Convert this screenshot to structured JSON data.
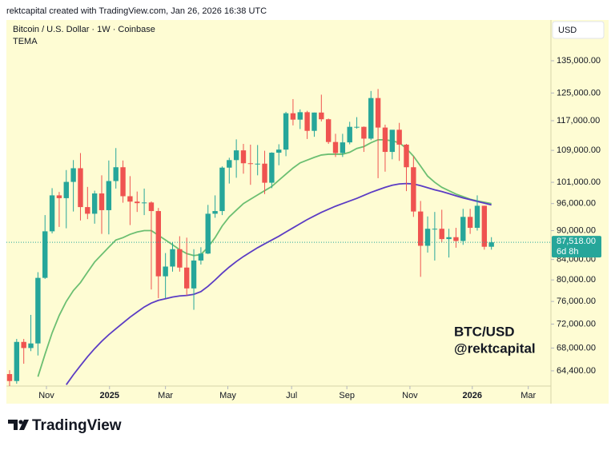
{
  "chart_data": {
    "type": "candlestick",
    "credit": "rektcapital created with TradingView.com, Jan 26, 2026 16:38 UTC",
    "title": "Bitcoin / U.S. Dollar · 1W · Coinbase",
    "subtitle": "TEMA",
    "currency": "USD",
    "annotations": [
      "BTC/USD",
      "@rektcapital"
    ],
    "footer": "TradingView",
    "log_scale": true,
    "grid": false,
    "up_color": "#26a69a",
    "down_color": "#ef5350",
    "ylim": [
      62100,
      148800
    ],
    "yticks": [
      {
        "value": 135000,
        "label": "135,000.00"
      },
      {
        "value": 125000,
        "label": "125,000.00"
      },
      {
        "value": 117000,
        "label": "117,000.00"
      },
      {
        "value": 109000,
        "label": "109,000.00"
      },
      {
        "value": 101000,
        "label": "101,000.00"
      },
      {
        "value": 96000,
        "label": "96,000.00"
      },
      {
        "value": 90000,
        "label": "90,000.00"
      },
      {
        "value": 84000,
        "label": "84,000.00"
      },
      {
        "value": 80000,
        "label": "80,000.00"
      },
      {
        "value": 76000,
        "label": "76,000.00"
      },
      {
        "value": 72000,
        "label": "72,000.00"
      },
      {
        "value": 68000,
        "label": "68,000.00"
      },
      {
        "value": 64400,
        "label": "64,400.00"
      }
    ],
    "xlim": [
      -0.45,
      76.4
    ],
    "xticks": [
      {
        "value": 5.2,
        "label": "Nov"
      },
      {
        "value": 14.1,
        "label": "2025",
        "bold": true
      },
      {
        "value": 22.0,
        "label": "Mar"
      },
      {
        "value": 30.8,
        "label": "May"
      },
      {
        "value": 39.8,
        "label": "Jul"
      },
      {
        "value": 47.6,
        "label": "Sep"
      },
      {
        "value": 56.5,
        "label": "Nov"
      },
      {
        "value": 65.3,
        "label": "2026",
        "bold": true
      },
      {
        "value": 73.2,
        "label": "Mar"
      }
    ],
    "last_price": {
      "value": 87518,
      "label": "87,518.00",
      "countdown": "6d 8h",
      "color": "#26a69a"
    },
    "open": [
      63900,
      62850,
      69000,
      68000,
      68750,
      80400,
      89850,
      97900,
      97250,
      101100,
      104450,
      95200,
      93700,
      98350,
      94500,
      101300,
      104700,
      97700,
      96450,
      96100,
      96250,
      94300,
      80700,
      82600,
      86100,
      82400,
      78400,
      83800,
      85200,
      93700,
      94300,
      104600,
      106500,
      109000,
      105700,
      105600,
      105600,
      100900,
      108400,
      109200,
      119100,
      117300,
      119400,
      114200,
      119300,
      117400,
      111200,
      108300,
      111100,
      115300,
      115300,
      112100,
      123500,
      115100,
      108600,
      114500,
      110500,
      104700,
      94200,
      86800,
      90400,
      90400,
      88200,
      88600,
      87800,
      93000,
      90600,
      95500,
      86600
    ],
    "high": [
      64500,
      69500,
      69500,
      73600,
      81500,
      93400,
      99600,
      98700,
      104000,
      106500,
      108300,
      99900,
      99000,
      102700,
      106400,
      109600,
      106400,
      102500,
      98800,
      99500,
      96500,
      95000,
      85300,
      87500,
      88800,
      88500,
      86100,
      86500,
      95700,
      97900,
      104900,
      107100,
      111900,
      110700,
      110500,
      110400,
      108900,
      108500,
      110600,
      119500,
      123200,
      120200,
      119800,
      119300,
      124500,
      117600,
      113400,
      113400,
      116700,
      118000,
      115400,
      125600,
      126200,
      115900,
      114000,
      116400,
      110700,
      107500,
      96600,
      93100,
      94100,
      94600,
      90400,
      90600,
      94800,
      94800,
      97900,
      95500,
      88600
    ],
    "low": [
      62100,
      62450,
      65500,
      67500,
      66800,
      80200,
      89400,
      90800,
      90500,
      94200,
      92200,
      92500,
      91500,
      89300,
      89200,
      99500,
      96200,
      91200,
      94100,
      93400,
      78200,
      76600,
      76600,
      81600,
      81600,
      77100,
      74500,
      83000,
      85100,
      92800,
      93400,
      100700,
      102100,
      103100,
      100400,
      102700,
      98200,
      99600,
      105200,
      107500,
      115700,
      114700,
      112000,
      112600,
      116800,
      110700,
      107300,
      107300,
      110600,
      114800,
      108600,
      111700,
      102000,
      103600,
      106700,
      106300,
      98900,
      93000,
      80600,
      85400,
      83800,
      87500,
      84400,
      86400,
      87000,
      89300,
      90000,
      86000,
      86000
    ],
    "close": [
      62850,
      69000,
      68000,
      68750,
      80400,
      89850,
      97900,
      97250,
      101100,
      104450,
      95200,
      93700,
      98350,
      94500,
      101300,
      104700,
      97700,
      96450,
      96100,
      96250,
      94300,
      80700,
      82600,
      86100,
      82400,
      78400,
      83800,
      85200,
      93700,
      94300,
      104600,
      106500,
      109000,
      105700,
      105600,
      105600,
      100900,
      108400,
      109200,
      119100,
      117300,
      119400,
      114200,
      119300,
      117400,
      111200,
      108300,
      111100,
      115300,
      115300,
      112100,
      123500,
      115100,
      108600,
      114500,
      110500,
      104700,
      94200,
      86800,
      90400,
      90400,
      88200,
      88600,
      87800,
      93000,
      90600,
      95500,
      86600,
      87518
    ],
    "series": [
      {
        "color": "#6cbf72",
        "values": [
          null,
          null,
          null,
          null,
          63500,
          67000,
          70500,
          73500,
          76000,
          78000,
          79500,
          81500,
          83500,
          85000,
          86500,
          88000,
          88500,
          89200,
          89700,
          90000,
          90000,
          89000,
          88000,
          87000,
          86000,
          85200,
          84800,
          85000,
          86500,
          88500,
          91000,
          93000,
          94500,
          96000,
          97000,
          98000,
          99000,
          100000,
          101500,
          103000,
          104500,
          105800,
          106500,
          107200,
          107800,
          108000,
          108000,
          108000,
          108500,
          109500,
          110000,
          111000,
          111800,
          111800,
          111500,
          111000,
          109500,
          107500,
          105000,
          102500,
          101000,
          99800,
          99000,
          98200,
          97600,
          97000,
          96600,
          96300,
          96000
        ]
      },
      {
        "color": "#5b3cc4",
        "values": [
          null,
          null,
          null,
          null,
          null,
          null,
          null,
          null,
          62300,
          63800,
          65200,
          66600,
          67900,
          69100,
          70200,
          71200,
          72200,
          73200,
          74100,
          75000,
          75700,
          76200,
          76500,
          76800,
          77000,
          77100,
          77300,
          77800,
          78800,
          80000,
          81300,
          82500,
          83600,
          84600,
          85500,
          86400,
          87200,
          88000,
          88800,
          89700,
          90600,
          91500,
          92400,
          93200,
          94000,
          94700,
          95400,
          96000,
          96600,
          97200,
          97900,
          98600,
          99200,
          99800,
          100300,
          100600,
          100700,
          100600,
          100200,
          99700,
          99200,
          98800,
          98300,
          97800,
          97300,
          96900,
          96500,
          96100,
          95700
        ]
      }
    ]
  }
}
